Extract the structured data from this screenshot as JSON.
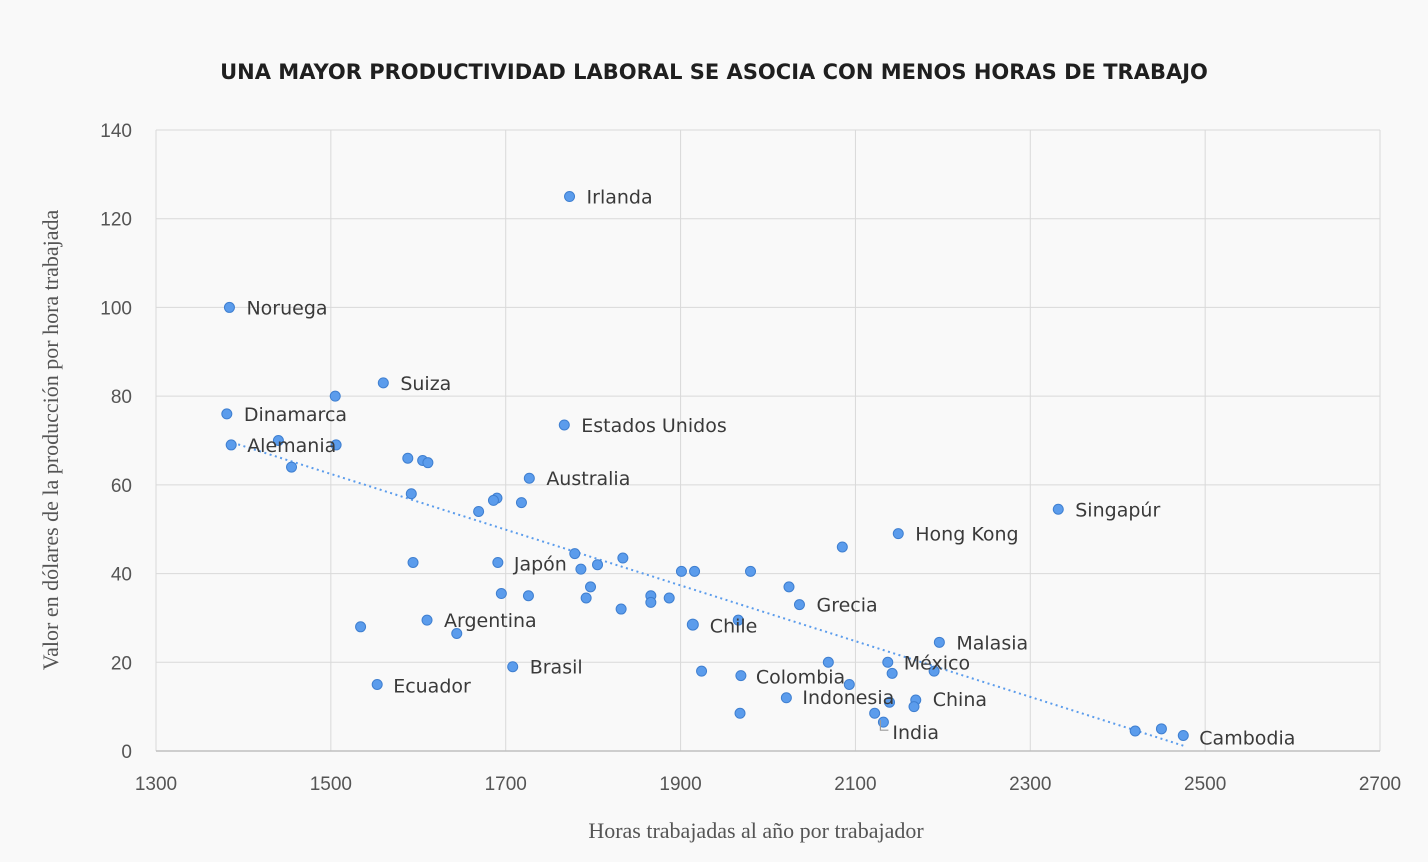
{
  "chart_data": {
    "type": "scatter",
    "title": "UNA MAYOR PRODUCTIVIDAD LABORAL SE ASOCIA CON MENOS HORAS DE TRABAJO",
    "xlabel": "Horas trabajadas al año por trabajador",
    "ylabel": "Valor en dólares de la producción por hora trabajada",
    "xlim": [
      1300,
      2700
    ],
    "ylim": [
      0,
      140
    ],
    "xticks": [
      1300,
      1500,
      1700,
      1900,
      2100,
      2300,
      2500,
      2700
    ],
    "yticks": [
      0,
      20,
      40,
      60,
      80,
      100,
      120,
      140
    ],
    "grid": true,
    "trendline": {
      "style": "dotted",
      "x": [
        1388,
        2475
      ],
      "y": [
        69.5,
        1.2
      ]
    },
    "highlight_color": "#2f6fd1",
    "point_color": "#5b9cec",
    "points": [
      {
        "label": "Irlanda",
        "x": 1773,
        "y": 125
      },
      {
        "label": "Noruega",
        "x": 1384,
        "y": 100
      },
      {
        "label": "Suiza",
        "x": 1560,
        "y": 83
      },
      {
        "label": "Dinamarca",
        "x": 1381,
        "y": 76
      },
      {
        "label": "Estados Unidos",
        "x": 1767,
        "y": 73.5
      },
      {
        "label": "Alemania",
        "x": 1386,
        "y": 69
      },
      {
        "label": "Australia",
        "x": 1727,
        "y": 61.5
      },
      {
        "label": "Singapúr",
        "x": 2332,
        "y": 54.5
      },
      {
        "label": "Hong Kong",
        "x": 2149,
        "y": 49
      },
      {
        "label": "Japón",
        "x": 1691,
        "y": 42.5
      },
      {
        "label": "Grecia",
        "x": 2036,
        "y": 33
      },
      {
        "label": "Argentina",
        "x": 1610,
        "y": 29.5
      },
      {
        "label": "Chile",
        "x": 1914,
        "y": 28.5,
        "highlight": true
      },
      {
        "label": "Malasia",
        "x": 2196,
        "y": 24.5
      },
      {
        "label": "México",
        "x": 2137,
        "y": 20
      },
      {
        "label": "Brasil",
        "x": 1708,
        "y": 19
      },
      {
        "label": "Colombia",
        "x": 1969,
        "y": 17
      },
      {
        "label": "Ecuador",
        "x": 1553,
        "y": 15
      },
      {
        "label": "Indonesia",
        "x": 2021,
        "y": 12
      },
      {
        "label": "China",
        "x": 2169,
        "y": 11.5
      },
      {
        "label": "India",
        "x": 2132,
        "y": 6.5
      },
      {
        "label": "Cambodia",
        "x": 2475,
        "y": 3.5
      },
      {
        "label": "",
        "x": 1505,
        "y": 80
      },
      {
        "label": "",
        "x": 1440,
        "y": 70
      },
      {
        "label": "",
        "x": 1455,
        "y": 64
      },
      {
        "label": "",
        "x": 1506,
        "y": 69
      },
      {
        "label": "",
        "x": 1588,
        "y": 66
      },
      {
        "label": "",
        "x": 1605,
        "y": 65.5
      },
      {
        "label": "",
        "x": 1611,
        "y": 65
      },
      {
        "label": "",
        "x": 1592,
        "y": 58
      },
      {
        "label": "",
        "x": 1690,
        "y": 57
      },
      {
        "label": "",
        "x": 1686,
        "y": 56.5
      },
      {
        "label": "",
        "x": 1718,
        "y": 56
      },
      {
        "label": "",
        "x": 1669,
        "y": 54
      },
      {
        "label": "",
        "x": 1779,
        "y": 44.5
      },
      {
        "label": "",
        "x": 1834,
        "y": 43.5
      },
      {
        "label": "",
        "x": 1594,
        "y": 42.5
      },
      {
        "label": "",
        "x": 1805,
        "y": 42
      },
      {
        "label": "",
        "x": 1786,
        "y": 41
      },
      {
        "label": "",
        "x": 1901,
        "y": 40.5
      },
      {
        "label": "",
        "x": 1916,
        "y": 40.5
      },
      {
        "label": "",
        "x": 1980,
        "y": 40.5
      },
      {
        "label": "",
        "x": 1797,
        "y": 37
      },
      {
        "label": "",
        "x": 2024,
        "y": 37
      },
      {
        "label": "",
        "x": 1695,
        "y": 35.5
      },
      {
        "label": "",
        "x": 1726,
        "y": 35
      },
      {
        "label": "",
        "x": 1792,
        "y": 34.5
      },
      {
        "label": "",
        "x": 1866,
        "y": 35
      },
      {
        "label": "",
        "x": 1887,
        "y": 34.5
      },
      {
        "label": "",
        "x": 1866,
        "y": 33.5
      },
      {
        "label": "",
        "x": 1832,
        "y": 32
      },
      {
        "label": "",
        "x": 1534,
        "y": 28
      },
      {
        "label": "",
        "x": 1644,
        "y": 26.5
      },
      {
        "label": "",
        "x": 1966,
        "y": 29.5
      },
      {
        "label": "",
        "x": 2085,
        "y": 46
      },
      {
        "label": "",
        "x": 2069,
        "y": 20
      },
      {
        "label": "",
        "x": 2142,
        "y": 17.5
      },
      {
        "label": "",
        "x": 2190,
        "y": 18
      },
      {
        "label": "",
        "x": 1924,
        "y": 18
      },
      {
        "label": "",
        "x": 2093,
        "y": 15
      },
      {
        "label": "",
        "x": 2139,
        "y": 11
      },
      {
        "label": "",
        "x": 2167,
        "y": 10
      },
      {
        "label": "",
        "x": 2122,
        "y": 8.5
      },
      {
        "label": "",
        "x": 1968,
        "y": 8.5
      },
      {
        "label": "",
        "x": 2420,
        "y": 4.5
      },
      {
        "label": "",
        "x": 2450,
        "y": 5
      }
    ]
  }
}
